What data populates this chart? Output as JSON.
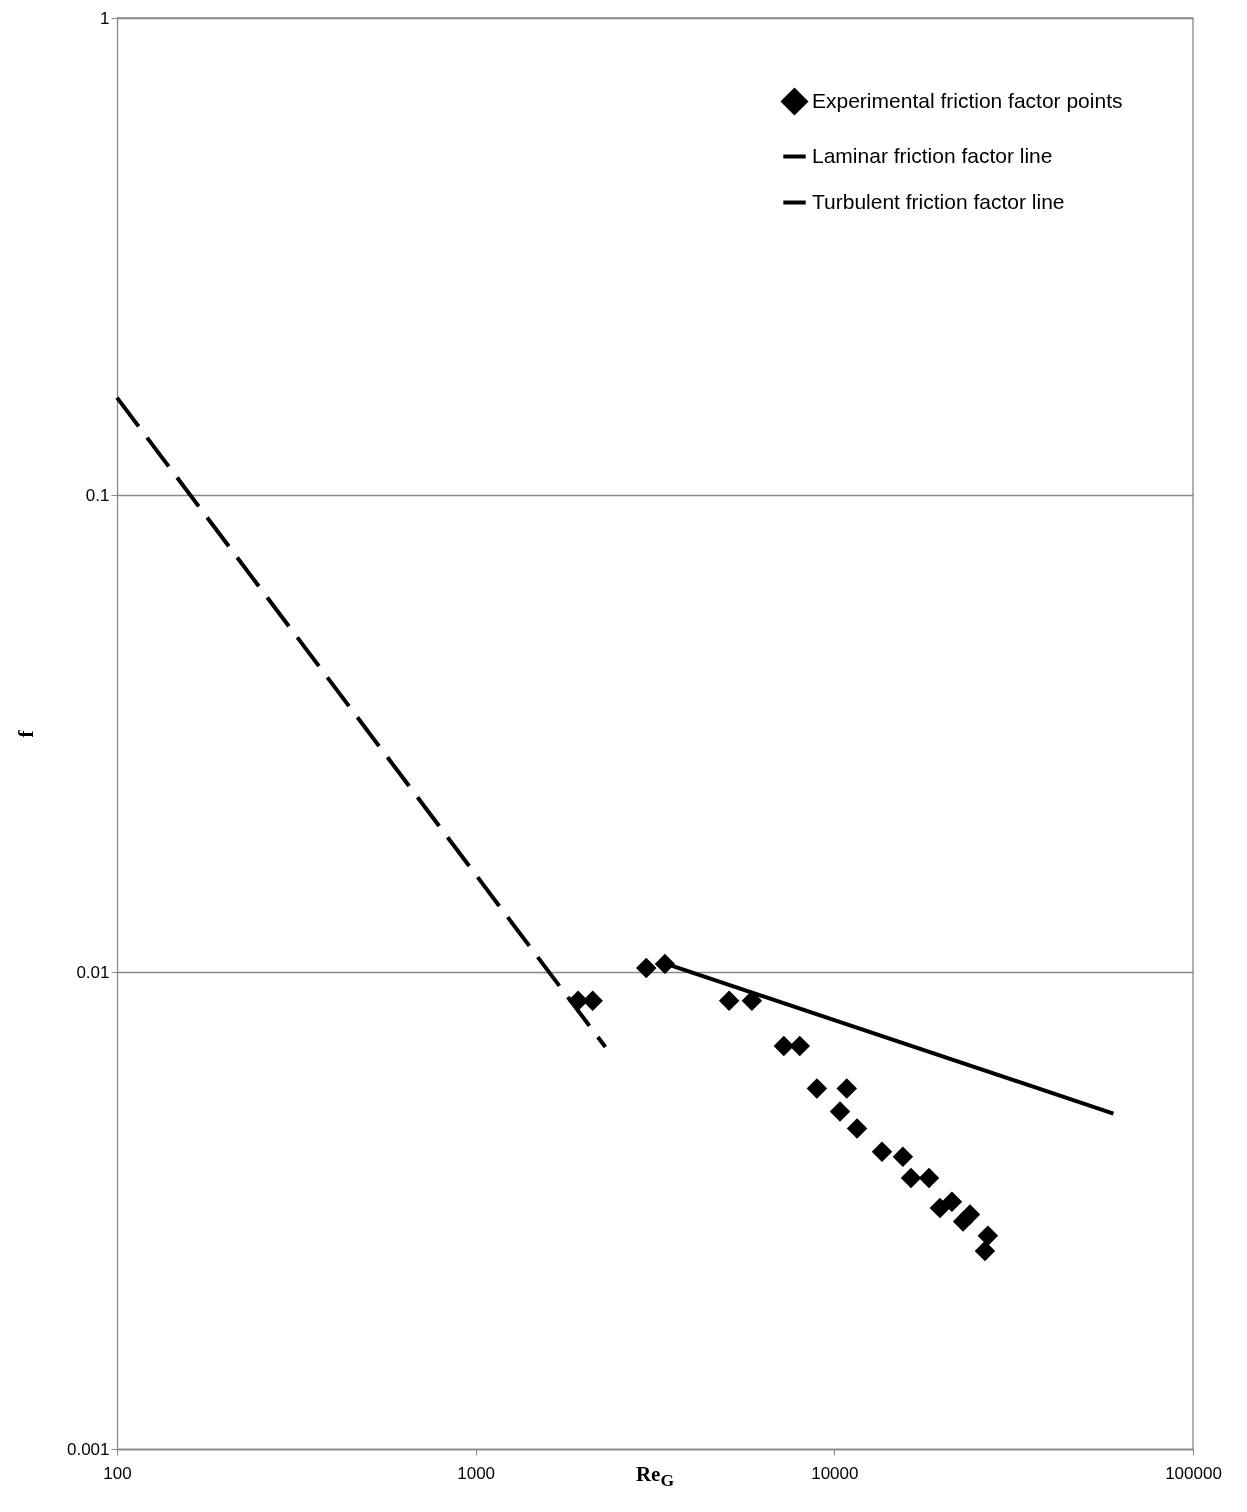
{
  "chart_data": {
    "type": "line",
    "xlabel": "Re$_{G}$",
    "ylabel": "f",
    "log": "xy",
    "grid": "y",
    "legend": "top right",
    "xlim": [
      100,
      100000
    ],
    "ylim": [
      0.001,
      1
    ],
    "xticks": [
      100,
      1000,
      10000,
      100000
    ],
    "yticks": [
      0.001,
      0.01,
      0.1,
      1
    ],
    "series": [
      {
        "name": "Experimental friction factor points",
        "type": "scatter",
        "marker": "diamond",
        "color": "#000000",
        "x": [
          1930,
          2120,
          2990,
          3370,
          5090,
          5890,
          7230,
          8010,
          8940,
          10830,
          10370,
          11570,
          13580,
          15530,
          16360,
          18360,
          19700,
          21280,
          22850,
          23890,
          26800,
          26300
        ],
        "values": [
          0.0087,
          0.0087,
          0.0102,
          0.0104,
          0.0087,
          0.0087,
          0.007,
          0.007,
          0.0057,
          0.0057,
          0.0051,
          0.0047,
          0.0042,
          0.0041,
          0.0037,
          0.0037,
          0.0032,
          0.0033,
          0.003,
          0.0031,
          0.0028,
          0.0026
        ]
      },
      {
        "name": "Laminar friction factor line",
        "type": "line",
        "line_style": "dashed",
        "color": "#000000",
        "x": [
          100,
          2300
        ],
        "values": [
          0.16,
          0.00696
        ]
      },
      {
        "name": "Turbulent friction factor line",
        "type": "line",
        "line_style": "solid",
        "color": "#000000",
        "x": [
          3400,
          60000
        ],
        "values": [
          0.0104,
          0.00505
        ]
      }
    ]
  }
}
